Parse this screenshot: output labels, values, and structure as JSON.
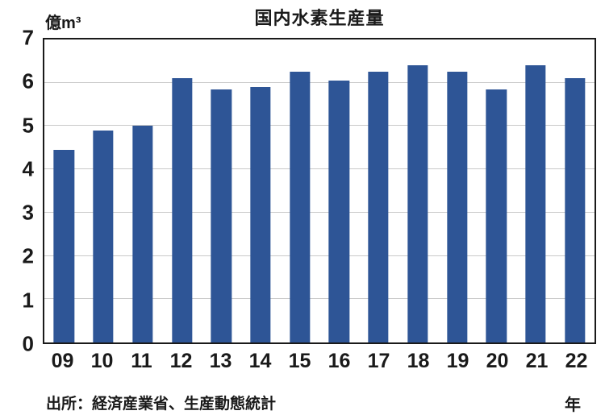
{
  "chart_data": {
    "type": "bar",
    "title": "国内水素生産量",
    "unit_label": "億m³",
    "categories": [
      "09",
      "10",
      "11",
      "12",
      "13",
      "14",
      "15",
      "16",
      "17",
      "18",
      "19",
      "20",
      "21",
      "22"
    ],
    "values": [
      4.45,
      4.9,
      5.0,
      6.1,
      5.85,
      5.9,
      6.25,
      6.05,
      6.25,
      6.4,
      6.25,
      5.85,
      6.4,
      6.1
    ],
    "xlabel": "年",
    "ylabel": "億m³",
    "ylim": [
      0,
      7
    ],
    "yticks": [
      0,
      1,
      2,
      3,
      4,
      5,
      6,
      7
    ],
    "grid": true,
    "legend": false,
    "bar_color": "#2E5596",
    "gridline_color": "#c9c9c9",
    "source": "出所：経済産業省、生産動態統計"
  }
}
